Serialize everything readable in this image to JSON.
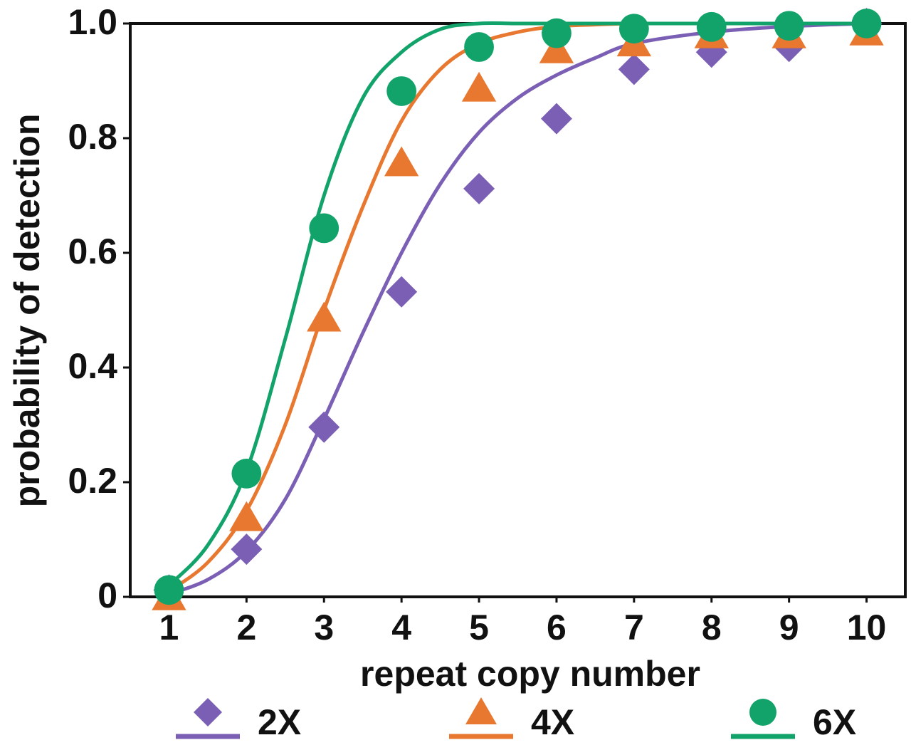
{
  "chart_data": {
    "type": "scatter",
    "x_label": "repeat copy number",
    "y_label": "probability of detection",
    "x": [
      1,
      2,
      3,
      4,
      5,
      6,
      7,
      8,
      9,
      10
    ],
    "fit_x": [
      1,
      1.5,
      2,
      2.5,
      3,
      3.5,
      4,
      4.5,
      5,
      5.5,
      6,
      6.5,
      7,
      8,
      9,
      10
    ],
    "xlim": [
      0.5,
      10.5
    ],
    "ylim": [
      0,
      1
    ],
    "xticks": [
      1,
      2,
      3,
      4,
      5,
      6,
      7,
      8,
      9,
      10
    ],
    "yticks": [
      0,
      0.2,
      0.4,
      0.6,
      0.8,
      {
        "value": 1,
        "label": "1.0"
      }
    ],
    "series": [
      {
        "name": "2X",
        "color": "#7b5fb5",
        "marker": "diamond",
        "values": [
          0.012,
          0.083,
          0.296,
          0.532,
          0.712,
          0.834,
          0.92,
          0.95,
          0.96,
          1.0
        ],
        "fit_values": [
          0.005,
          0.03,
          0.08,
          0.17,
          0.31,
          0.46,
          0.6,
          0.72,
          0.81,
          0.87,
          0.91,
          0.94,
          0.965,
          0.985,
          0.995,
          1.0
        ]
      },
      {
        "name": "4X",
        "color": "#e8782f",
        "marker": "triangle",
        "values": [
          0,
          0.138,
          0.486,
          0.757,
          0.887,
          0.954,
          0.966,
          0.98,
          0.98,
          0.985
        ],
        "fit_values": [
          0.01,
          0.06,
          0.15,
          0.3,
          0.5,
          0.68,
          0.83,
          0.92,
          0.965,
          0.985,
          0.995,
          0.998,
          1.0,
          1.0,
          1.0,
          1.0
        ]
      },
      {
        "name": "6X",
        "color": "#12a36a",
        "marker": "circle",
        "values": [
          0.012,
          0.215,
          0.643,
          0.882,
          0.959,
          0.983,
          0.991,
          0.994,
          0.996,
          1.0
        ],
        "fit_values": [
          0.02,
          0.09,
          0.22,
          0.45,
          0.7,
          0.87,
          0.95,
          0.99,
          1.0,
          1.0,
          1.0,
          1.0,
          1.0,
          1.0,
          1.0,
          1.0
        ]
      }
    ]
  }
}
